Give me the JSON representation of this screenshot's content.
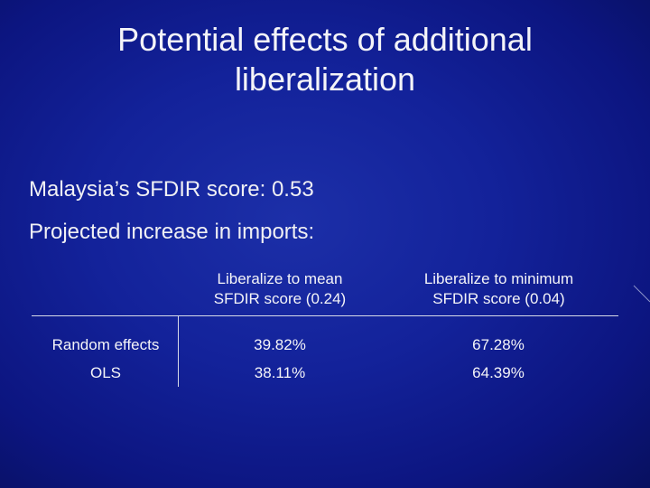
{
  "slide": {
    "title_line1": "Potential effects of additional",
    "title_line2": "liberalization",
    "score_text": "Malaysia’s SFDIR score:  0.53",
    "increase_text": "Projected increase in imports:"
  },
  "table": {
    "columns": [
      {
        "line1": "Liberalize to mean",
        "line2": "SFDIR score (0.24)"
      },
      {
        "line1": "Liberalize to minimum",
        "line2": "SFDIR score (0.04)"
      }
    ],
    "rows": [
      {
        "label": "Random effects",
        "values": [
          "39.82%",
          "67.28%"
        ]
      },
      {
        "label": "OLS",
        "values": [
          "38.11%",
          "64.39%"
        ]
      }
    ]
  },
  "colors": {
    "background": "#13229a",
    "text": "#ffffff",
    "rule": "#d8dbe8"
  }
}
